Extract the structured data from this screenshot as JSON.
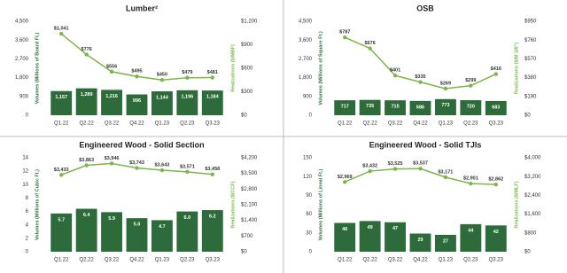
{
  "chart_data": [
    {
      "type": "combo",
      "title": "Lumber²",
      "categories": [
        "Q1.22",
        "Q2.22",
        "Q3.22",
        "Q4.22",
        "Q1.23",
        "Q2.23",
        "Q3.23"
      ],
      "ylabel": "Volumes (Millions of Board Ft.)",
      "y2label": "Realizations ($/MBF)",
      "ylim": [
        0,
        4500
      ],
      "yticks": [
        0,
        {
          "value": 900,
          "label": "900"
        },
        {
          "value": 1800,
          "label": "1,800"
        },
        {
          "value": 2700,
          "label": "2,700"
        },
        {
          "value": 3600,
          "label": "3,600"
        },
        {
          "value": 4500,
          "label": "4,500"
        }
      ],
      "y2lim": [
        0,
        1200
      ],
      "y2ticks": [
        {
          "value": 0,
          "label": "$0"
        },
        {
          "value": 300,
          "label": "$300"
        },
        {
          "value": 600,
          "label": "$600"
        },
        {
          "value": 900,
          "label": "$900"
        },
        {
          "value": 1200,
          "label": "$1,200"
        }
      ],
      "series": [
        {
          "type": "bar",
          "color": "#2e6b3a",
          "values": [
            1157,
            1289,
            1216,
            996,
            1144,
            1196,
            1184
          ],
          "value_labels": [
            "1,157",
            "1,289",
            "1,216",
            "996",
            "1,144",
            "1,196",
            "1,184"
          ]
        },
        {
          "type": "line",
          "axis": "y2",
          "color": "#7ab648",
          "values": [
            1041,
            776,
            556,
            495,
            450,
            479,
            481
          ],
          "value_labels": [
            "$1,041",
            "$776",
            "$556",
            "$495",
            "$450",
            "$479",
            "$481"
          ]
        }
      ]
    },
    {
      "type": "combo",
      "title": "OSB",
      "categories": [
        "Q1.22",
        "Q2.22",
        "Q3.22",
        "Q4.22",
        "Q1.23",
        "Q2.23",
        "Q3.23"
      ],
      "ylabel": "Volumes (Millions of Square Ft.)",
      "y2label": "Realizations ($/M 3/8\")",
      "ylim": [
        0,
        4500
      ],
      "yticks": [
        0,
        900,
        {
          "value": 1800,
          "label": "1,800"
        },
        {
          "value": 2700,
          "label": "2,700"
        },
        {
          "value": 3600,
          "label": "3,600"
        },
        {
          "value": 4500,
          "label": "4,500"
        }
      ],
      "y2lim": [
        0,
        950
      ],
      "y2ticks": [
        {
          "value": 0,
          "label": "$0"
        },
        {
          "value": 190,
          "label": "$190"
        },
        {
          "value": 380,
          "label": "$380"
        },
        {
          "value": 570,
          "label": "$570"
        },
        {
          "value": 760,
          "label": "$760"
        },
        {
          "value": 950,
          "label": "$950"
        }
      ],
      "series": [
        {
          "type": "bar",
          "color": "#2e6b3a",
          "values": [
            717,
            735,
            715,
            686,
            773,
            720,
            683
          ]
        },
        {
          "type": "line",
          "axis": "y2",
          "color": "#7ab648",
          "values": [
            787,
            676,
            401,
            335,
            269,
            299,
            416
          ],
          "value_labels": [
            "$787",
            "$676",
            "$401",
            "$335",
            "$269",
            "$299",
            "$416"
          ]
        }
      ]
    },
    {
      "type": "combo",
      "title": "Engineered Wood - Solid Section",
      "categories": [
        "Q1.22",
        "Q2.22",
        "Q3.22",
        "Q4.22",
        "Q1.23",
        "Q2.23",
        "Q3.23"
      ],
      "ylabel": "Volumes (Millions of Cubic Ft.)",
      "y2label": "Realizations ($/CCF)",
      "ylim": [
        0,
        14
      ],
      "yticks": [
        0,
        2,
        4,
        6,
        8,
        10,
        12,
        14
      ],
      "y2lim": [
        0,
        4200
      ],
      "y2ticks": [
        {
          "value": 0,
          "label": "$0"
        },
        {
          "value": 700,
          "label": "$700"
        },
        {
          "value": 1400,
          "label": "$1,400"
        },
        {
          "value": 2100,
          "label": "$2,100"
        },
        {
          "value": 2800,
          "label": "$2,800"
        },
        {
          "value": 3500,
          "label": "$3,500"
        },
        {
          "value": 4200,
          "label": "$4,200"
        }
      ],
      "series": [
        {
          "type": "bar",
          "color": "#2e6b3a",
          "values": [
            5.7,
            6.4,
            5.9,
            5.0,
            4.7,
            6.0,
            6.2
          ],
          "value_labels": [
            "5.7",
            "6.4",
            "5.9",
            "5.0",
            "4.7",
            "6.0",
            "6.2"
          ]
        },
        {
          "type": "line",
          "axis": "y2",
          "color": "#7ab648",
          "values": [
            3433,
            3863,
            3946,
            3743,
            3643,
            3571,
            3458
          ],
          "value_labels": [
            "$3,433",
            "$3,863",
            "$3,946",
            "$3,743",
            "$3,643",
            "$3,571",
            "$3,458"
          ]
        }
      ]
    },
    {
      "type": "combo",
      "title": "Engineered Wood - Solid TJIs",
      "categories": [
        "Q1.22",
        "Q2.22",
        "Q3.22",
        "Q4.22",
        "Q1.23",
        "Q2.23",
        "Q3.23"
      ],
      "ylabel": "Volumes (Millions of Lineal Ft.)",
      "y2label": "Realizations ($/MLF)",
      "ylim": [
        0,
        150
      ],
      "yticks": [
        0,
        30,
        60,
        90,
        120,
        150
      ],
      "y2lim": [
        0,
        4000
      ],
      "y2ticks": [
        {
          "value": 0,
          "label": "$0"
        },
        {
          "value": 800,
          "label": "$800"
        },
        {
          "value": 1600,
          "label": "$1,600"
        },
        {
          "value": 2400,
          "label": "$2,400"
        },
        {
          "value": 3200,
          "label": "$3,200"
        },
        {
          "value": 4000,
          "label": "$4,000"
        }
      ],
      "series": [
        {
          "type": "bar",
          "color": "#2e6b3a",
          "values": [
            46,
            49,
            47,
            29,
            27,
            44,
            42
          ]
        },
        {
          "type": "line",
          "axis": "y2",
          "color": "#7ab648",
          "values": [
            2969,
            3432,
            3525,
            3537,
            3171,
            2901,
            2862
          ],
          "value_labels": [
            "$2,969",
            "$3,432",
            "$3,525",
            "$3,537",
            "$3,171",
            "$2,901",
            "$2,862"
          ]
        }
      ]
    }
  ]
}
